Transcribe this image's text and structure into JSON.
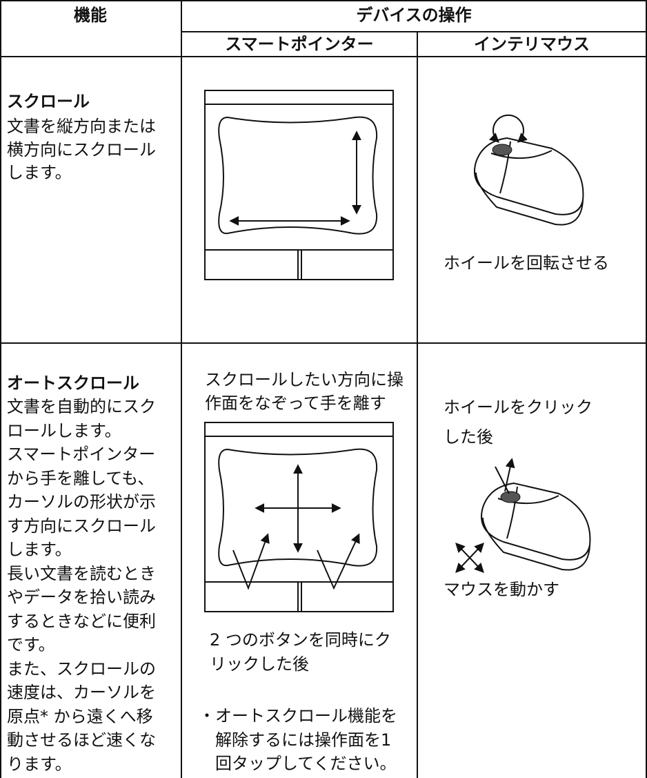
{
  "header": {
    "function": "機能",
    "device_ops": "デバイスの操作",
    "smart_pointer": "スマートポインター",
    "intellimouse": "インテリマウス"
  },
  "rows": [
    {
      "title": "スクロール",
      "description": [
        "文書を縦方向または",
        "横方向にスクロール",
        "します。"
      ],
      "intellimouse": {
        "caption": [
          "ホイールを回転させる"
        ]
      }
    },
    {
      "title": "オートスクロール",
      "description": [
        "文書を自動的にスク",
        "ロールします。",
        "スマートポインター",
        "から手を離しても、",
        "カーソルの形状が示",
        "す方向にスクロール",
        "します。",
        "長い文書を読むとき",
        "やデータを拾い読み",
        "するときなどに便利",
        "です。",
        "また、スクロールの",
        "速度は、カーソルを",
        "原点* から遠くへ移",
        "動させるほど速くな",
        "ります。"
      ],
      "smart_pointer": {
        "instruction": [
          "スクロールしたい方向に操",
          "作面をなぞって手を離す"
        ],
        "caption": [
          "2 つのボタンを同時にク",
          "リックした後"
        ],
        "note": [
          "・オートスクロール機能を",
          "解除するには操作面を1",
          "回タップしてください。"
        ]
      },
      "intellimouse": {
        "instruction": [
          "ホイールをクリック",
          "した後"
        ],
        "caption": [
          "マウスを動かす"
        ]
      }
    }
  ]
}
